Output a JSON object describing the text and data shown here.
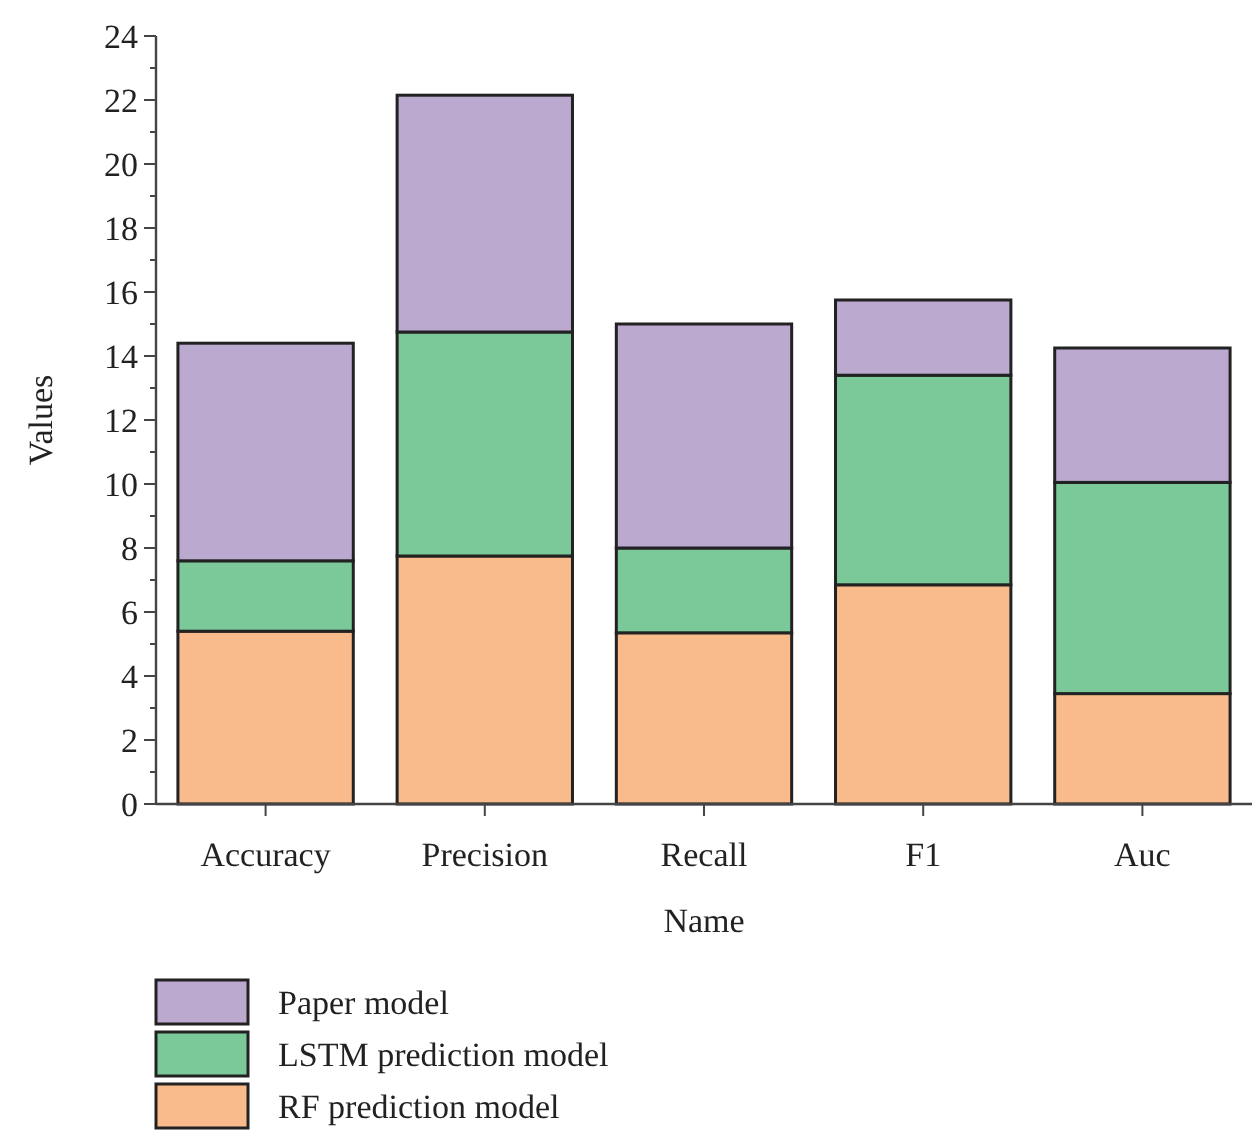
{
  "chart_data": {
    "type": "bar",
    "stacked": true,
    "xlabel": "Name",
    "ylabel": "Values",
    "categories": [
      "Accuracy",
      "Precision",
      "Recall",
      "F1",
      "Auc"
    ],
    "series": [
      {
        "name": "RF prediction model",
        "color": "#f9bb8b",
        "values": [
          5.4,
          7.75,
          5.35,
          6.85,
          3.45
        ]
      },
      {
        "name": "LSTM prediction model",
        "color": "#7bc998",
        "values": [
          2.2,
          7.0,
          2.65,
          6.55,
          6.6
        ]
      },
      {
        "name": "Paper model",
        "color": "#bba9d0",
        "values": [
          6.8,
          7.4,
          7.0,
          2.35,
          4.2
        ]
      }
    ],
    "ylim": [
      0,
      24
    ],
    "yticks": [
      0,
      {
        "value": 1,
        "label": null
      },
      2,
      {
        "value": 3,
        "label": null
      },
      4,
      {
        "value": 5,
        "label": null
      },
      6,
      {
        "value": 7,
        "label": null
      },
      8,
      {
        "value": 9,
        "label": null
      },
      10,
      {
        "value": 11,
        "label": null
      },
      12,
      {
        "value": 13,
        "label": null
      },
      14,
      {
        "value": 15,
        "label": null
      },
      16,
      {
        "value": 17,
        "label": null
      },
      18,
      {
        "value": 19,
        "label": null
      },
      20,
      {
        "value": 21,
        "label": null
      },
      22,
      {
        "value": 23,
        "label": null
      },
      24
    ],
    "legend": "bottom",
    "grid": false
  }
}
